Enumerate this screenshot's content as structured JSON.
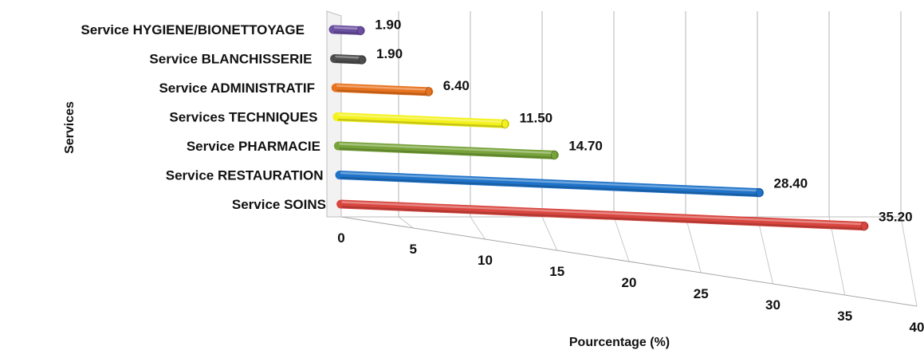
{
  "chart_data": {
    "type": "bar",
    "orientation": "horizontal",
    "categories": [
      "Service HYGIENE/BIONETTOYAGE",
      "Service BLANCHISSERIE",
      "Service ADMINISTRATIF",
      "Services TECHNIQUES",
      "Service PHARMACIE",
      "Service RESTAURATION",
      "Service SOINS"
    ],
    "values": [
      1.9,
      1.9,
      6.4,
      11.5,
      14.7,
      28.4,
      35.2
    ],
    "value_labels": [
      "1.90",
      "1.90",
      "6.40",
      "11.50",
      "14.70",
      "28.40",
      "35.20"
    ],
    "colors": [
      "#6B4FA0",
      "#4D4D4D",
      "#E8731F",
      "#F4F21C",
      "#77A33A",
      "#1F73C9",
      "#D9463F"
    ],
    "xlabel": "Pourcentage (%)",
    "ylabel": "Services",
    "xlim": [
      0,
      40
    ],
    "xticks": [
      0,
      5,
      10,
      15,
      20,
      25,
      30,
      35,
      40
    ],
    "grid": true,
    "legend": "none",
    "style": "3d-perspective-cylinder"
  }
}
